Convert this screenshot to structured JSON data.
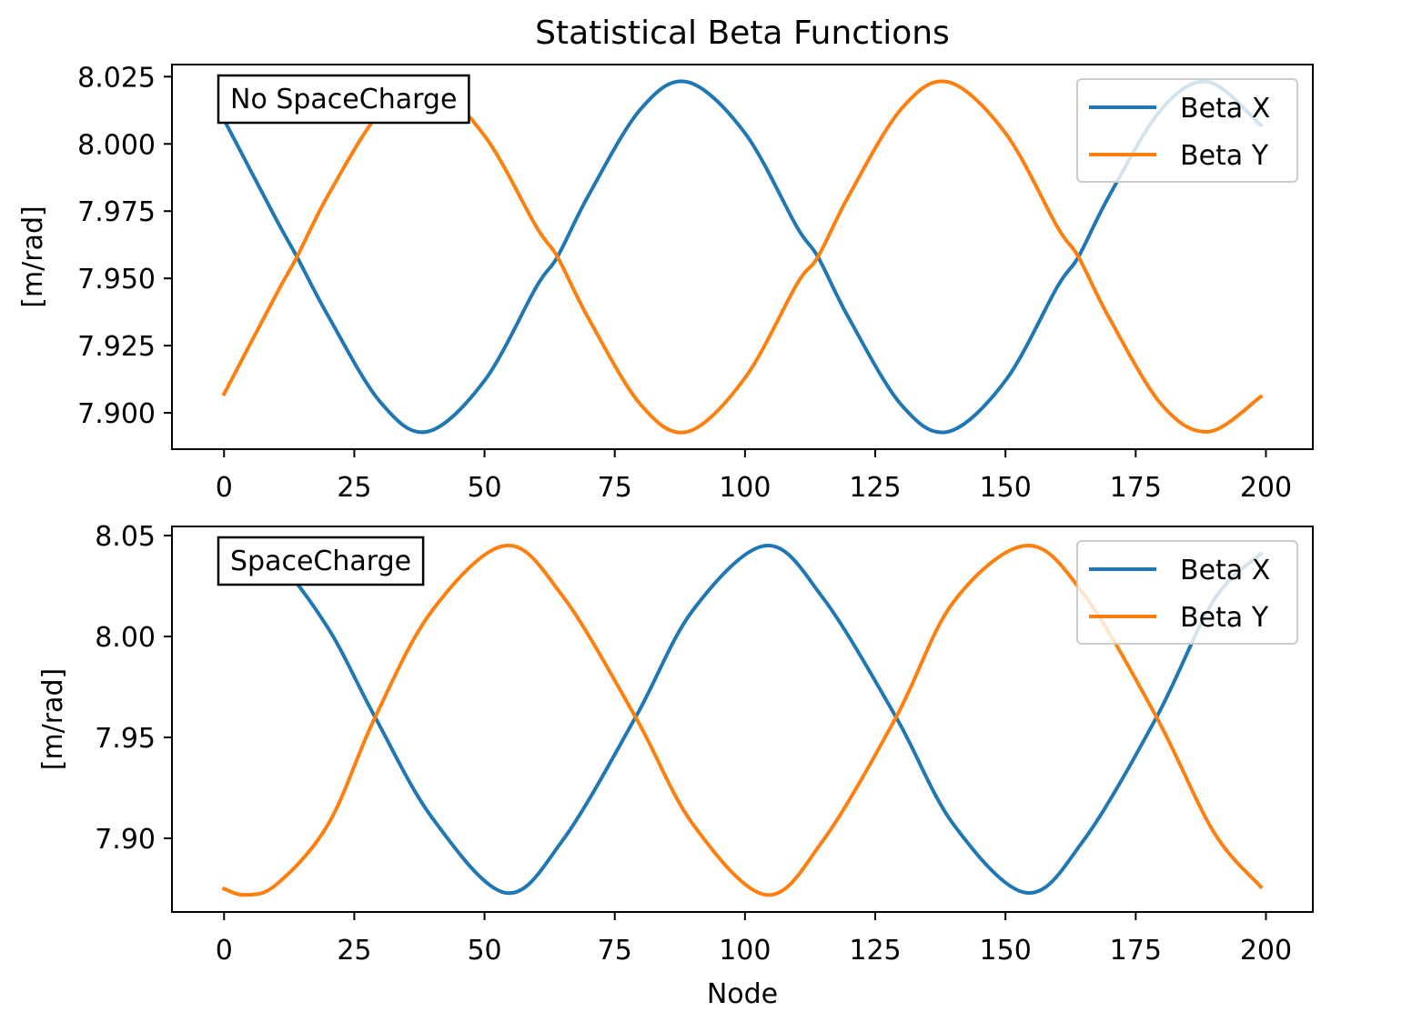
{
  "figure_title": "Statistical Beta Functions",
  "colors": {
    "beta_x": "#1f77b4",
    "beta_y": "#ff7f0e"
  },
  "chart_data": [
    {
      "type": "line",
      "title": "",
      "annotation": "No SpaceCharge",
      "xlabel": "",
      "ylabel": "[m/rad]",
      "xlim": [
        -10,
        209
      ],
      "ylim": [
        7.8865,
        8.0295
      ],
      "x_ticks": [
        0,
        25,
        50,
        75,
        100,
        125,
        150,
        175,
        200
      ],
      "x_tick_labels": [
        "0",
        "25",
        "50",
        "75",
        "100",
        "125",
        "150",
        "175",
        "200"
      ],
      "y_ticks": [
        7.9,
        7.925,
        7.95,
        7.975,
        8.0,
        8.025
      ],
      "y_tick_labels": [
        "7.900",
        "7.925",
        "7.950",
        "7.975",
        "8.000",
        "8.025"
      ],
      "legend": "upper right",
      "x": [
        0,
        10,
        14,
        20,
        30,
        39,
        50,
        60,
        64,
        70,
        80,
        89,
        100,
        110,
        114,
        120,
        130,
        139,
        150,
        160,
        164,
        170,
        180,
        189,
        199
      ],
      "series": [
        {
          "name": "Beta X",
          "values": [
            8.009,
            7.972,
            7.958,
            7.936,
            7.904,
            7.893,
            7.912,
            7.947,
            7.958,
            7.981,
            8.013,
            8.023,
            8.004,
            7.969,
            7.958,
            7.935,
            7.903,
            7.893,
            7.912,
            7.947,
            7.958,
            7.981,
            8.013,
            8.023,
            8.007
          ]
        },
        {
          "name": "Beta Y",
          "values": [
            7.907,
            7.944,
            7.958,
            7.981,
            8.012,
            8.023,
            8.003,
            7.969,
            7.958,
            7.935,
            7.903,
            7.893,
            7.913,
            7.948,
            7.958,
            7.981,
            8.013,
            8.023,
            8.004,
            7.969,
            7.958,
            7.935,
            7.903,
            7.893,
            7.906
          ]
        }
      ]
    },
    {
      "type": "line",
      "title": "",
      "annotation": "SpaceCharge",
      "xlabel": "Node",
      "ylabel": "[m/rad]",
      "xlim": [
        -10,
        209
      ],
      "ylim": [
        7.8635,
        8.0545
      ],
      "x_ticks": [
        0,
        25,
        50,
        75,
        100,
        125,
        150,
        175,
        200
      ],
      "x_tick_labels": [
        "0",
        "25",
        "50",
        "75",
        "100",
        "125",
        "150",
        "175",
        "200"
      ],
      "y_ticks": [
        7.9,
        7.95,
        8.0,
        8.05
      ],
      "y_tick_labels": [
        "7.90",
        "7.95",
        "8.00",
        "8.05"
      ],
      "legend": "upper right",
      "x": [
        0,
        4,
        10,
        20,
        29,
        40,
        54,
        65,
        79,
        90,
        104,
        115,
        129,
        140,
        154,
        165,
        179,
        190,
        199
      ],
      "series": [
        {
          "name": "Beta X",
          "values": [
            8.042,
            8.042,
            8.038,
            8.004,
            7.96,
            7.91,
            7.873,
            7.899,
            7.96,
            8.013,
            8.045,
            8.019,
            7.96,
            7.907,
            7.873,
            7.899,
            7.96,
            8.018,
            8.041
          ]
        },
        {
          "name": "Beta Y",
          "values": [
            7.875,
            7.872,
            7.877,
            7.907,
            7.96,
            8.013,
            8.045,
            8.02,
            7.96,
            7.907,
            7.872,
            7.899,
            7.96,
            8.017,
            8.045,
            8.021,
            7.96,
            7.903,
            7.876
          ]
        }
      ]
    }
  ]
}
